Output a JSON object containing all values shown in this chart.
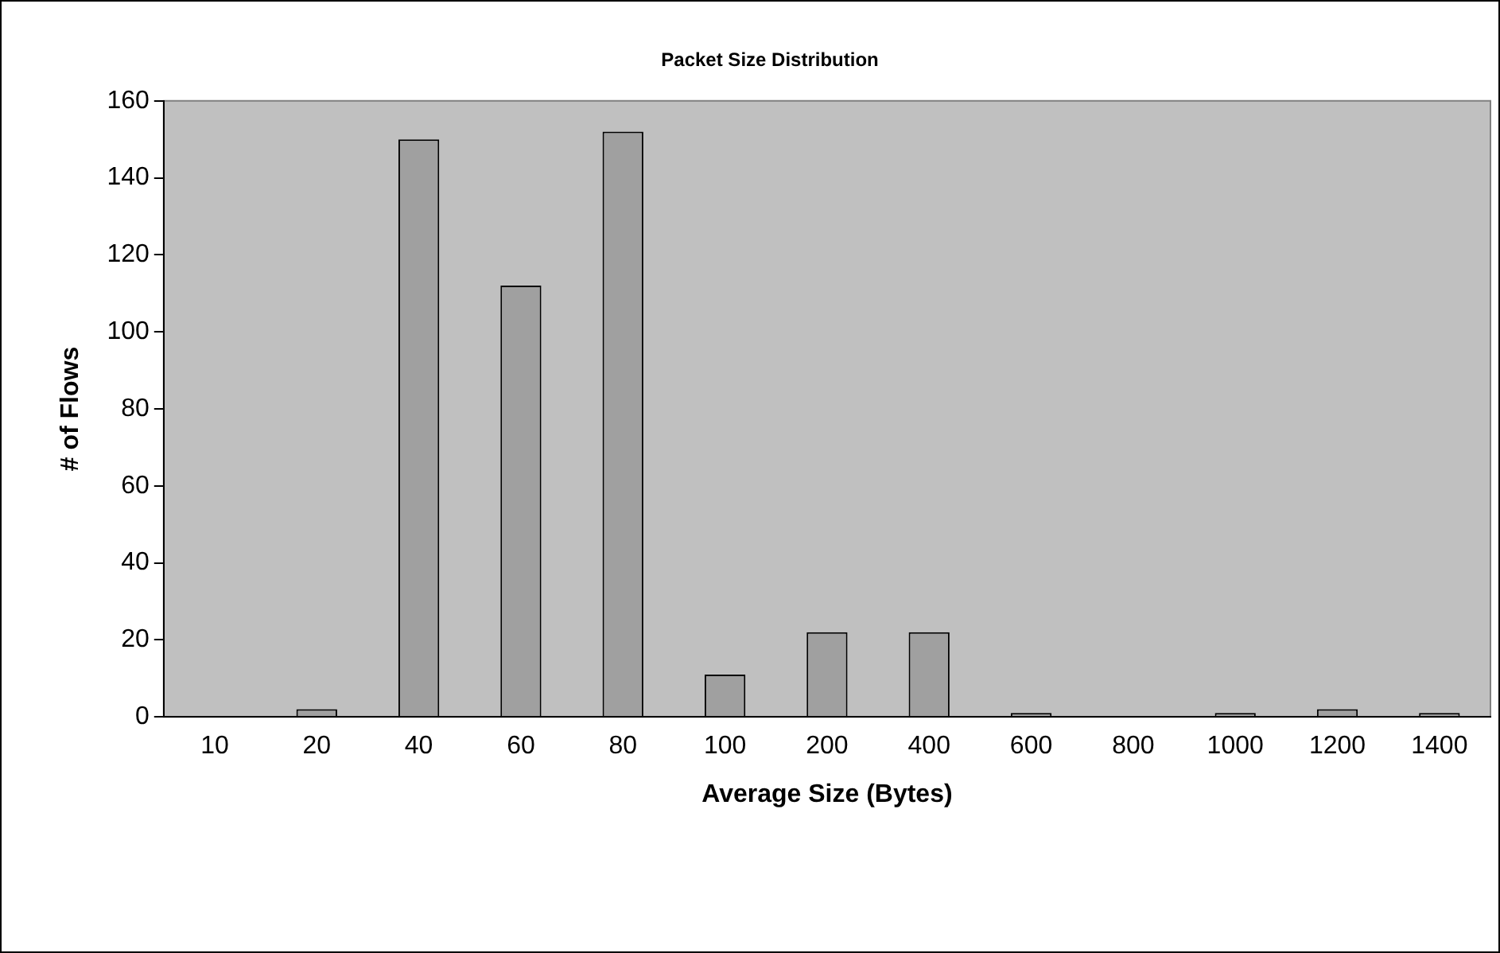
{
  "chart_data": {
    "type": "bar",
    "title": "Packet Size Distribution",
    "xlabel": "Average Size (Bytes)",
    "ylabel": "# of Flows",
    "categories": [
      "10",
      "20",
      "40",
      "60",
      "80",
      "100",
      "200",
      "400",
      "600",
      "800",
      "1000",
      "1200",
      "1400"
    ],
    "series": [
      {
        "color": "#a0a0a0",
        "values": [
          0,
          2,
          150,
          112,
          152,
          11,
          22,
          22,
          1,
          0,
          1,
          2,
          1
        ]
      }
    ],
    "ylim": [
      0,
      160
    ],
    "yticks": [
      0,
      20,
      40,
      60,
      80,
      100,
      120,
      140,
      160
    ],
    "grid": false,
    "legend": false
  }
}
